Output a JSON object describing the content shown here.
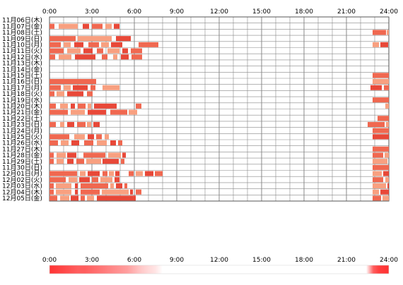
{
  "chart_data": {
    "type": "heatmap",
    "title": "",
    "xlabel": "",
    "ylabel": "",
    "x_range_hours": [
      0,
      24
    ],
    "x_ticks": [
      "0:00",
      "3:00",
      "6:00",
      "9:00",
      "12:00",
      "15:00",
      "18:00",
      "21:00",
      "24:00"
    ],
    "grid": true,
    "colors": {
      "grid": "#888888",
      "frame": "#555555",
      "block": "#f06850",
      "block_light": "#f8a080",
      "block_dark": "#e84838",
      "strip_base": "#ffffff"
    },
    "days": [
      {
        "label": "11月06日(木)",
        "blocks": []
      },
      {
        "label": "11月07日(金)",
        "blocks": [
          [
            0.0,
            0.35
          ],
          [
            0.65,
            2.0
          ],
          [
            2.35,
            2.8
          ],
          [
            3.0,
            3.75
          ],
          [
            3.95,
            4.4
          ],
          [
            4.55,
            4.95
          ]
        ]
      },
      {
        "label": "11月08日(土)",
        "blocks": [
          [
            22.85,
            23.8
          ],
          [
            23.85,
            24.0
          ]
        ]
      },
      {
        "label": "11月09日(日)",
        "blocks": [
          [
            0.0,
            1.85
          ],
          [
            2.0,
            4.4
          ],
          [
            4.7,
            5.75
          ]
        ]
      },
      {
        "label": "11月10日(月)",
        "blocks": [
          [
            0.0,
            0.8
          ],
          [
            1.0,
            1.5
          ],
          [
            1.75,
            2.4
          ],
          [
            2.75,
            3.5
          ],
          [
            3.65,
            4.2
          ],
          [
            4.35,
            5.15
          ],
          [
            6.3,
            7.7
          ],
          [
            22.85,
            23.3
          ],
          [
            23.4,
            23.95
          ]
        ]
      },
      {
        "label": "11月11日(火)",
        "blocks": [
          [
            0.0,
            1.0
          ],
          [
            1.25,
            2.2
          ],
          [
            2.4,
            3.05
          ],
          [
            3.35,
            3.8
          ],
          [
            4.1,
            4.95
          ],
          [
            5.15,
            5.55
          ],
          [
            5.75,
            6.55
          ]
        ]
      },
      {
        "label": "11月12日(水)",
        "blocks": [
          [
            0.0,
            0.4
          ],
          [
            0.65,
            1.55
          ],
          [
            1.8,
            3.25
          ],
          [
            3.7,
            4.1
          ],
          [
            4.5,
            4.8
          ],
          [
            5.05,
            5.6
          ],
          [
            5.8,
            6.55
          ]
        ]
      },
      {
        "label": "11月13日(木)",
        "blocks": []
      },
      {
        "label": "11月14日(金)",
        "blocks": []
      },
      {
        "label": "11月15日(土)",
        "blocks": [
          [
            22.85,
            24.0
          ]
        ]
      },
      {
        "label": "11月16日(日)",
        "blocks": [
          [
            0.0,
            3.3
          ],
          [
            22.85,
            24.0
          ]
        ]
      },
      {
        "label": "11月17日(月)",
        "blocks": [
          [
            0.0,
            0.8
          ],
          [
            1.0,
            1.5
          ],
          [
            1.65,
            2.7
          ],
          [
            2.9,
            3.25
          ],
          [
            3.75,
            4.95
          ],
          [
            22.7,
            23.5
          ],
          [
            23.65,
            24.0
          ]
        ]
      },
      {
        "label": "11月18日(火)",
        "blocks": [
          [
            0.0,
            0.35
          ],
          [
            0.5,
            1.05
          ],
          [
            1.25,
            2.4
          ],
          [
            2.65,
            3.05
          ]
        ]
      },
      {
        "label": "11月19日(水)",
        "blocks": [
          [
            22.85,
            24.0
          ]
        ]
      },
      {
        "label": "11月20日(木)",
        "blocks": [
          [
            0.0,
            0.45
          ],
          [
            0.75,
            1.3
          ],
          [
            1.5,
            1.8
          ],
          [
            2.0,
            2.55
          ],
          [
            2.7,
            2.95
          ],
          [
            3.15,
            4.75
          ],
          [
            6.1,
            6.5
          ],
          [
            23.75,
            24.0
          ]
        ]
      },
      {
        "label": "11月21日(金)",
        "blocks": [
          [
            0.0,
            1.3
          ],
          [
            1.5,
            2.5
          ],
          [
            2.7,
            4.0
          ],
          [
            4.3,
            5.5
          ],
          [
            5.6,
            6.2
          ]
        ]
      },
      {
        "label": "11月22日(土)",
        "blocks": [
          [
            23.2,
            24.0
          ]
        ]
      },
      {
        "label": "11月23日(日)",
        "blocks": [
          [
            0.0,
            0.45
          ],
          [
            0.75,
            1.05
          ],
          [
            1.25,
            1.75
          ],
          [
            1.95,
            2.55
          ],
          [
            2.65,
            2.95
          ],
          [
            3.1,
            3.55
          ],
          [
            22.5,
            23.7
          ],
          [
            23.8,
            24.0
          ]
        ]
      },
      {
        "label": "11月24日(月)",
        "blocks": [
          [
            22.85,
            24.0
          ]
        ]
      },
      {
        "label": "11月25日(火)",
        "blocks": [
          [
            0.0,
            1.4
          ],
          [
            1.75,
            2.5
          ],
          [
            2.7,
            3.15
          ],
          [
            3.3,
            3.7
          ],
          [
            3.9,
            4.2
          ],
          [
            22.85,
            24.0
          ]
        ]
      },
      {
        "label": "11月26日(水)",
        "blocks": [
          [
            0.0,
            0.6
          ],
          [
            0.8,
            1.35
          ],
          [
            1.55,
            2.1
          ],
          [
            2.45,
            3.1
          ],
          [
            3.35,
            4.05
          ],
          [
            4.3,
            4.7
          ],
          [
            4.85,
            5.15
          ]
        ]
      },
      {
        "label": "11月27日(木)",
        "blocks": [
          [
            22.85,
            24.0
          ]
        ]
      },
      {
        "label": "11月28日(金)",
        "blocks": [
          [
            0.0,
            0.3
          ],
          [
            0.5,
            1.15
          ],
          [
            1.25,
            1.9
          ],
          [
            2.4,
            3.95
          ],
          [
            4.15,
            5.05
          ],
          [
            5.15,
            5.4
          ],
          [
            22.85,
            23.6
          ],
          [
            23.7,
            24.0
          ]
        ]
      },
      {
        "label": "11月29日(土)",
        "blocks": [
          [
            0.0,
            0.3
          ],
          [
            0.5,
            1.0
          ],
          [
            1.25,
            1.7
          ],
          [
            1.9,
            2.45
          ],
          [
            2.6,
            3.65
          ],
          [
            3.75,
            4.9
          ],
          [
            5.05,
            5.3
          ],
          [
            22.85,
            23.9
          ]
        ]
      },
      {
        "label": "11月30日(日)",
        "blocks": [
          [
            22.85,
            24.0
          ]
        ]
      },
      {
        "label": "12月01日(月)",
        "blocks": [
          [
            0.0,
            1.95
          ],
          [
            2.15,
            2.55
          ],
          [
            2.7,
            3.55
          ],
          [
            3.75,
            4.1
          ],
          [
            4.2,
            4.55
          ],
          [
            4.65,
            4.95
          ],
          [
            5.6,
            5.95
          ],
          [
            6.1,
            6.6
          ],
          [
            6.75,
            7.35
          ],
          [
            7.45,
            8.0
          ],
          [
            22.85,
            23.5
          ],
          [
            23.6,
            24.0
          ]
        ]
      },
      {
        "label": "12月02日(火)",
        "blocks": [
          [
            0.0,
            1.15
          ],
          [
            1.35,
            1.95
          ],
          [
            2.1,
            2.85
          ],
          [
            3.0,
            3.45
          ],
          [
            3.6,
            4.45
          ],
          [
            4.6,
            4.95
          ],
          [
            22.85,
            23.6
          ],
          [
            23.75,
            24.0
          ]
        ]
      },
      {
        "label": "12月03日(水)",
        "blocks": [
          [
            0.0,
            0.3
          ],
          [
            0.45,
            1.55
          ],
          [
            1.8,
            2.0
          ],
          [
            2.2,
            4.15
          ],
          [
            4.3,
            4.55
          ],
          [
            4.7,
            5.15
          ],
          [
            5.3,
            5.5
          ],
          [
            22.85,
            23.8
          ],
          [
            23.9,
            24.0
          ]
        ]
      },
      {
        "label": "12月04日(木)",
        "blocks": [
          [
            0.0,
            0.3
          ],
          [
            0.45,
            1.55
          ],
          [
            1.8,
            2.0
          ],
          [
            2.2,
            3.55
          ],
          [
            3.7,
            5.6
          ],
          [
            5.7,
            5.9
          ],
          [
            6.1,
            6.5
          ],
          [
            22.85,
            23.3
          ],
          [
            23.4,
            24.0
          ]
        ]
      },
      {
        "label": "12月05日(金)",
        "blocks": [
          [
            0.0,
            0.55
          ],
          [
            0.75,
            1.4
          ],
          [
            1.5,
            2.05
          ],
          [
            2.2,
            2.5
          ],
          [
            2.65,
            3.15
          ],
          [
            3.35,
            6.1
          ],
          [
            22.85,
            23.45
          ],
          [
            23.55,
            24.0
          ]
        ]
      }
    ],
    "density_strip": {
      "x_ticks": [
        "0:00",
        "3:00",
        "6:00",
        "9:00",
        "12:00",
        "15:00",
        "18:00",
        "21:00",
        "24:00"
      ],
      "profile": [
        [
          0.0,
          0.95
        ],
        [
          0.5,
          0.9
        ],
        [
          1.0,
          0.85
        ],
        [
          1.5,
          0.8
        ],
        [
          2.0,
          0.75
        ],
        [
          2.5,
          0.75
        ],
        [
          3.0,
          0.7
        ],
        [
          3.5,
          0.65
        ],
        [
          4.0,
          0.6
        ],
        [
          4.5,
          0.55
        ],
        [
          5.0,
          0.5
        ],
        [
          5.5,
          0.45
        ],
        [
          6.0,
          0.35
        ],
        [
          6.5,
          0.25
        ],
        [
          7.0,
          0.18
        ],
        [
          7.5,
          0.12
        ],
        [
          8.0,
          0.0
        ],
        [
          22.4,
          0.0
        ],
        [
          22.6,
          0.3
        ],
        [
          22.9,
          0.75
        ],
        [
          23.3,
          0.9
        ],
        [
          24.0,
          0.95
        ]
      ]
    }
  }
}
